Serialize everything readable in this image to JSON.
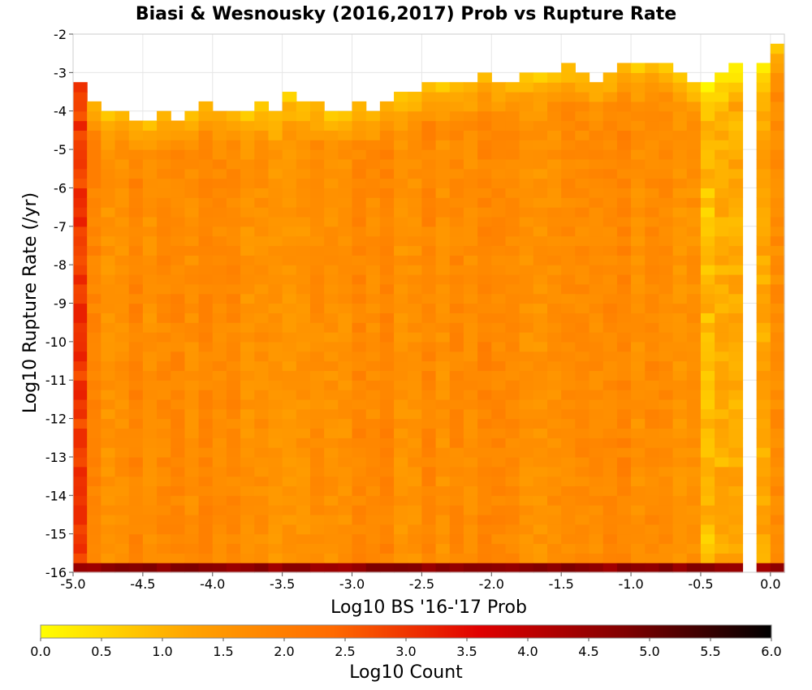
{
  "chart_data": {
    "type": "heatmap",
    "title": "Biasi & Wesnousky (2016,2017) Prob vs Rupture Rate",
    "xlabel": "Log10 BS '16-'17 Prob",
    "ylabel": "Log10 Rupture Rate (/yr)",
    "xlim": [
      -5.0,
      0.1
    ],
    "ylim": [
      -16,
      -2
    ],
    "x_bin_width": 0.1,
    "y_bin_width": 0.25,
    "x_ticks": [
      -5.0,
      -4.5,
      -4.0,
      -3.5,
      -3.0,
      -2.5,
      -2.0,
      -1.5,
      -1.0,
      -0.5,
      0.0
    ],
    "x_tick_labels": [
      "-5.0",
      "-4.5",
      "-4.0",
      "-3.5",
      "-3.0",
      "-2.5",
      "-2.0",
      "-1.5",
      "-1.0",
      "-0.5",
      "0.0"
    ],
    "y_ticks": [
      -2,
      -3,
      -4,
      -5,
      -6,
      -7,
      -8,
      -9,
      -10,
      -11,
      -12,
      -13,
      -14,
      -15,
      -16
    ],
    "y_tick_labels": [
      "-2",
      "-3",
      "-4",
      "-5",
      "-6",
      "-7",
      "-8",
      "-9",
      "-10",
      "-11",
      "-12",
      "-13",
      "-14",
      "-15",
      "-16"
    ],
    "colorbar": {
      "label": "Log10 Count",
      "range": [
        0.0,
        6.0
      ],
      "ticks": [
        0.0,
        0.5,
        1.0,
        1.5,
        2.0,
        2.5,
        3.0,
        3.5,
        4.0,
        4.5,
        5.0,
        5.5,
        6.0
      ],
      "tick_labels": [
        "0.0",
        "0.5",
        "1.0",
        "1.5",
        "2.0",
        "2.5",
        "3.0",
        "3.5",
        "4.0",
        "4.5",
        "5.0",
        "5.5",
        "6.0"
      ],
      "colors": [
        "#ffff00",
        "#ffa500",
        "#ff6a00",
        "#e00000",
        "#800000",
        "#000000"
      ],
      "placement": "bottom"
    },
    "grid": true,
    "data_summary": {
      "bottom_row_y": -16,
      "bottom_row_log10_count": 4.6,
      "first_column_x": -5.0,
      "first_column_log10_count_range": [
        2.6,
        3.3
      ],
      "typical_interior_log10_count": 1.7,
      "upper_envelope_log10_rate": [
        [
          -5.0,
          -3.5
        ],
        [
          -4.5,
          -4.0
        ],
        [
          -4.0,
          -4.0
        ],
        [
          -3.5,
          -3.75
        ],
        [
          -3.0,
          -3.75
        ],
        [
          -2.5,
          -3.5
        ],
        [
          -2.0,
          -3.25
        ],
        [
          -1.5,
          -3.0
        ],
        [
          -1.0,
          -3.0
        ],
        [
          -0.7,
          -2.75
        ],
        [
          -0.5,
          -3.25
        ],
        [
          0.0,
          -2.5
        ]
      ],
      "empty_column_x": -0.1
    }
  }
}
